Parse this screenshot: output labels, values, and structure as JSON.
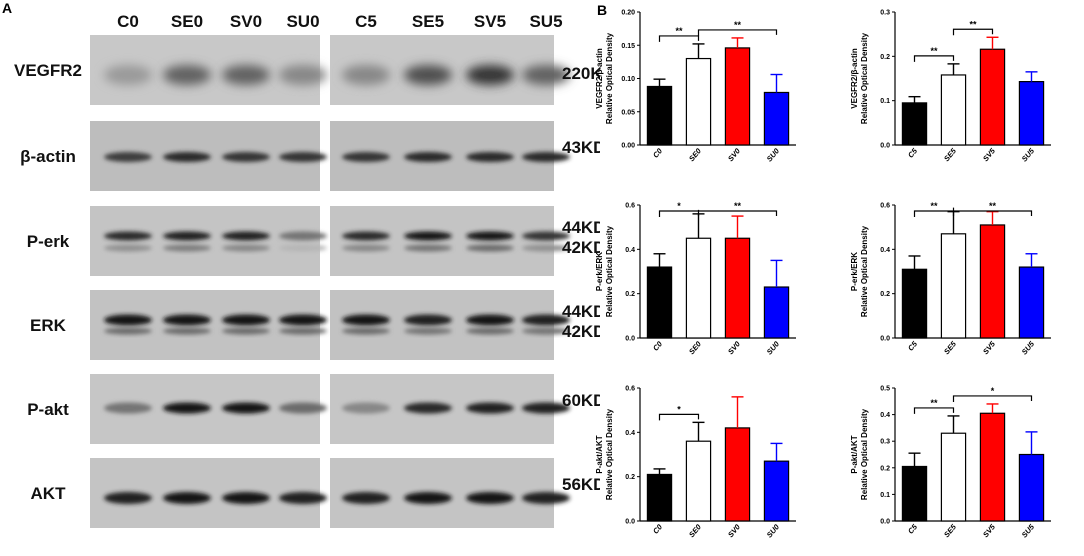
{
  "panel_a": {
    "letter": "A",
    "left_lanes": [
      "C0",
      "SE0",
      "SV0",
      "SU0"
    ],
    "right_lanes": [
      "C5",
      "SE5",
      "SV5",
      "SU5"
    ],
    "rows": [
      {
        "label": "VEGFR2",
        "kd": [
          "220KD"
        ]
      },
      {
        "label": "β-actin",
        "kd": [
          "43KD"
        ]
      },
      {
        "label": "P-erk",
        "kd": [
          "44KD",
          "42KD"
        ]
      },
      {
        "label": "ERK",
        "kd": [
          "44KD",
          "42KD"
        ]
      },
      {
        "label": "P-akt",
        "kd": [
          "60KD"
        ]
      },
      {
        "label": "AKT",
        "kd": [
          "56KD"
        ]
      }
    ]
  },
  "panel_b": {
    "letter": "B"
  },
  "chart_data": [
    {
      "type": "bar",
      "ylabel_lines": [
        "VEGFR2/β-actin",
        "Relative Optical Density"
      ],
      "categories": [
        "C0",
        "SE0",
        "SV0",
        "SU0"
      ],
      "values": [
        0.088,
        0.13,
        0.146,
        0.079
      ],
      "errors": [
        0.011,
        0.022,
        0.015,
        0.027
      ],
      "ylim": [
        0,
        0.2
      ],
      "yticks": [
        "0.00",
        "0.05",
        "0.10",
        "0.15",
        "0.20"
      ],
      "bar_colors": [
        "#000000",
        "#ffffff",
        "#ff0000",
        "#0000ff"
      ],
      "significance": [
        {
          "from": 0,
          "to": 1,
          "label": "**"
        },
        {
          "from": 1,
          "to": 3,
          "label": "**"
        }
      ]
    },
    {
      "type": "bar",
      "ylabel_lines": [
        "VEGFR2/β-actin",
        "Relative Optical Density"
      ],
      "categories": [
        "C5",
        "SE5",
        "SV5",
        "SU5"
      ],
      "values": [
        0.095,
        0.158,
        0.216,
        0.143
      ],
      "errors": [
        0.014,
        0.025,
        0.027,
        0.022
      ],
      "ylim": [
        0,
        0.3
      ],
      "yticks": [
        "0.0",
        "0.1",
        "0.2",
        "0.3"
      ],
      "bar_colors": [
        "#000000",
        "#ffffff",
        "#ff0000",
        "#0000ff"
      ],
      "significance": [
        {
          "from": 0,
          "to": 1,
          "label": "**"
        },
        {
          "from": 1,
          "to": 2,
          "label": "**"
        }
      ]
    },
    {
      "type": "bar",
      "ylabel_lines": [
        "P-erk/ERK",
        "Relative Optical Density"
      ],
      "categories": [
        "C0",
        "SE0",
        "SV0",
        "SU0"
      ],
      "values": [
        0.32,
        0.45,
        0.45,
        0.23
      ],
      "errors": [
        0.06,
        0.11,
        0.1,
        0.12
      ],
      "ylim": [
        0,
        0.6
      ],
      "yticks": [
        "0.0",
        "0.2",
        "0.4",
        "0.6"
      ],
      "bar_colors": [
        "#000000",
        "#ffffff",
        "#ff0000",
        "#0000ff"
      ],
      "significance": [
        {
          "from": 0,
          "to": 1,
          "label": "*"
        },
        {
          "from": 1,
          "to": 3,
          "label": "**"
        }
      ]
    },
    {
      "type": "bar",
      "ylabel_lines": [
        "P-erk/ERK",
        "Relative Optical Density"
      ],
      "categories": [
        "C5",
        "SE5",
        "SV5",
        "SU5"
      ],
      "values": [
        0.31,
        0.47,
        0.51,
        0.32
      ],
      "errors": [
        0.06,
        0.1,
        0.06,
        0.06
      ],
      "ylim": [
        0,
        0.6
      ],
      "yticks": [
        "0.0",
        "0.2",
        "0.4",
        "0.6"
      ],
      "bar_colors": [
        "#000000",
        "#ffffff",
        "#ff0000",
        "#0000ff"
      ],
      "significance": [
        {
          "from": 0,
          "to": 1,
          "label": "**"
        },
        {
          "from": 1,
          "to": 3,
          "label": "**"
        }
      ]
    },
    {
      "type": "bar",
      "ylabel_lines": [
        "P-akt/AKT",
        "Relative Optical Density"
      ],
      "categories": [
        "C0",
        "SE0",
        "SV0",
        "SU0"
      ],
      "values": [
        0.21,
        0.36,
        0.42,
        0.27
      ],
      "errors": [
        0.025,
        0.085,
        0.14,
        0.08
      ],
      "ylim": [
        0,
        0.6
      ],
      "yticks": [
        "0.0",
        "0.2",
        "0.4",
        "0.6"
      ],
      "bar_colors": [
        "#000000",
        "#ffffff",
        "#ff0000",
        "#0000ff"
      ],
      "significance": [
        {
          "from": 0,
          "to": 1,
          "label": "*"
        }
      ]
    },
    {
      "type": "bar",
      "ylabel_lines": [
        "P-akt/AKT",
        "Relative Optical Density"
      ],
      "categories": [
        "C5",
        "SE5",
        "SV5",
        "SU5"
      ],
      "values": [
        0.205,
        0.33,
        0.405,
        0.25
      ],
      "errors": [
        0.05,
        0.065,
        0.035,
        0.085
      ],
      "ylim": [
        0,
        0.5
      ],
      "yticks": [
        "0.0",
        "0.1",
        "0.2",
        "0.3",
        "0.4",
        "0.5"
      ],
      "bar_colors": [
        "#000000",
        "#ffffff",
        "#ff0000",
        "#0000ff"
      ],
      "significance": [
        {
          "from": 0,
          "to": 1,
          "label": "**"
        },
        {
          "from": 1,
          "to": 3,
          "label": "*"
        }
      ]
    }
  ]
}
